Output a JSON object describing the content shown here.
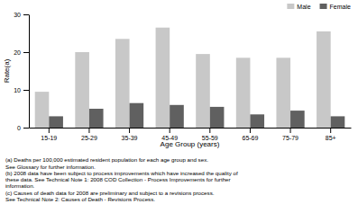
{
  "chart_data": {
    "type": "bar",
    "categories": [
      "15-19",
      "25-29",
      "35-39",
      "45-49",
      "55-59",
      "65-69",
      "75-79",
      "85+"
    ],
    "series": [
      {
        "name": "Male",
        "color": "#c8c8c8",
        "values": [
          9.5,
          20.0,
          23.5,
          26.5,
          19.5,
          18.5,
          18.5,
          25.5
        ]
      },
      {
        "name": "Female",
        "color": "#606060",
        "values": [
          3.0,
          5.0,
          6.5,
          6.0,
          5.5,
          3.5,
          4.5,
          3.0
        ]
      }
    ],
    "xlabel": "Age Group (years)",
    "ylabel": "Rate(a)",
    "ylim": [
      0,
      30
    ],
    "yticks": [
      0,
      10,
      20,
      30
    ],
    "legend": "upper right",
    "annotations": [
      "(a) Deaths per 100,000 estimated resident population for each age group and sex.",
      "See Glossary for further information.",
      "(b) 2008 data have been subject to process improvements which have increased the quality of",
      "these data. See Technical Note 1: 2008 COD Collection - Process Improvements for further",
      "information.",
      "(c) Causes of death data for 2008 are preliminary and subject to a revisions process.",
      "See Technical Note 2: Causes of Death - Revisions Process."
    ]
  }
}
